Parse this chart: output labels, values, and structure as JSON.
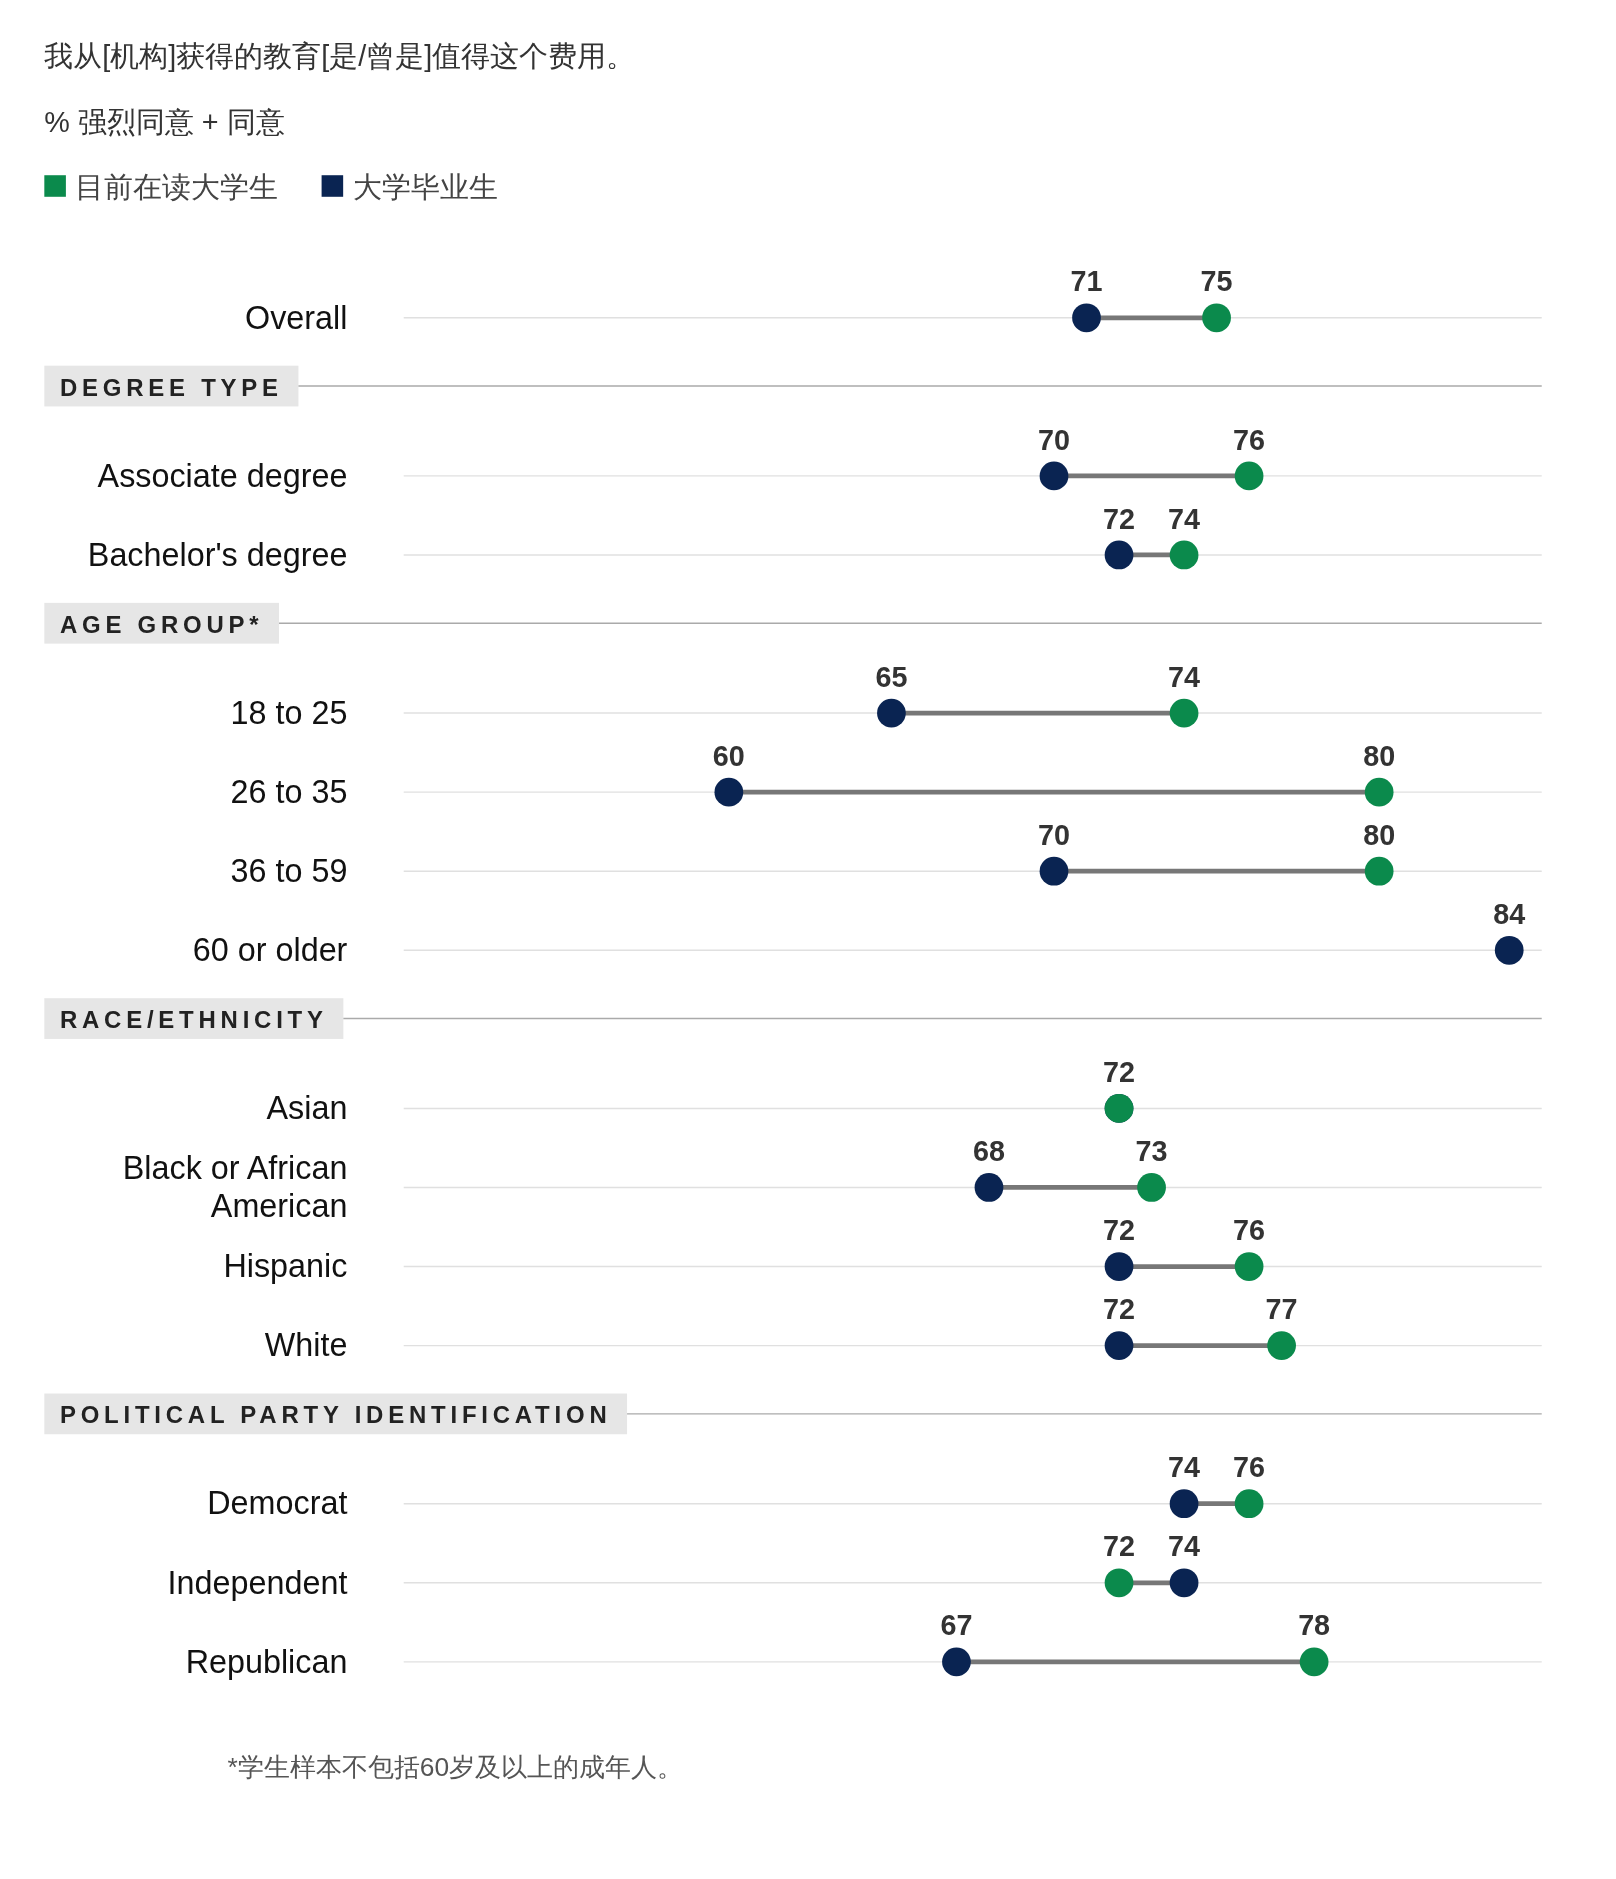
{
  "chart_data": {
    "type": "scatter",
    "orientation": "horizontal",
    "title": "我从[机构]获得的教育[是/曾是]值得这个费用。",
    "subtitle": "% 强烈同意 + 同意",
    "categories": [
      "Overall",
      null,
      "Associate degree",
      "Bachelor's degree",
      null,
      "18 to 25",
      "26 to 35",
      "36 to 59",
      "60 or older",
      null,
      "Asian",
      "Black or African American",
      "Hispanic",
      "White",
      null,
      "Democrat",
      "Independent",
      "Republican"
    ],
    "xlim": [
      50,
      85
    ],
    "grid": "y",
    "legend": "top left",
    "marker": "circle",
    "series": [
      {
        "name": "目前在读大学生",
        "color": "#0b8a4c",
        "values": [
          75,
          null,
          76,
          74,
          null,
          74,
          80,
          80,
          null,
          null,
          72,
          73,
          76,
          77,
          null,
          76,
          72,
          78
        ],
        "value_labels": [
          "75",
          null,
          "76",
          "74",
          null,
          "74",
          "80",
          "80",
          null,
          null,
          null,
          "73",
          "76",
          "77",
          null,
          "76",
          "72",
          "78"
        ]
      },
      {
        "name": "大学毕业生",
        "color": "#0a2452",
        "values": [
          71,
          null,
          70,
          72,
          null,
          65,
          60,
          70,
          84,
          null,
          72,
          68,
          72,
          72,
          null,
          74,
          74,
          67
        ],
        "value_labels": [
          "71",
          null,
          "70",
          "72",
          null,
          "65",
          "60",
          "70",
          "84",
          null,
          "72",
          "68",
          "72",
          "72",
          null,
          "74",
          "74",
          "67"
        ]
      }
    ],
    "annotations": [
      "DEGREE TYPE",
      "AGE GROUP*",
      "RACE/ETHNICITY",
      "POLITICAL PARTY IDENTIFICATION",
      "*学生样本不包括60岁及以上的成年人。"
    ]
  }
}
